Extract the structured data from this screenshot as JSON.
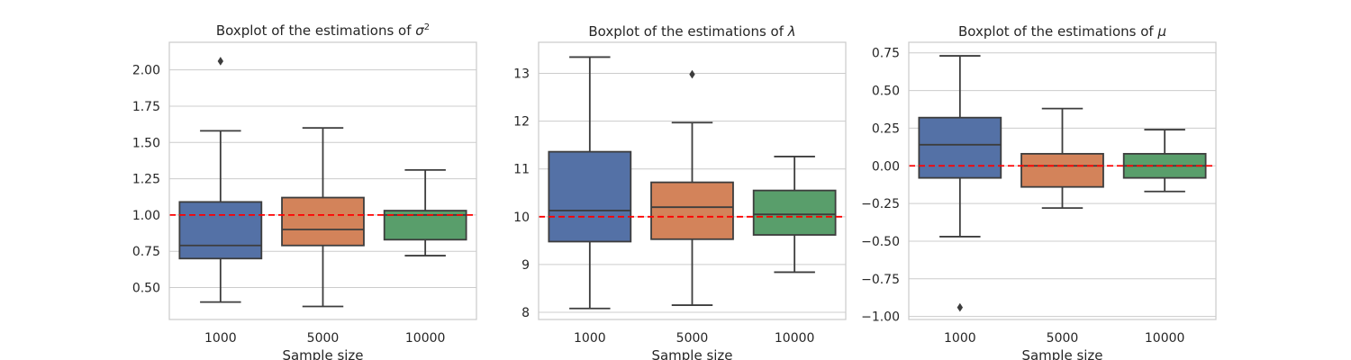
{
  "colors": {
    "grid": "#cccccc",
    "frame": "#cccccc",
    "box_edge": "#3d3d3d",
    "reference_line": "#ff0000",
    "series": [
      "#5471a6",
      "#d3835a",
      "#599e6b"
    ]
  },
  "chart_data": [
    {
      "type": "box",
      "title_main": "Boxplot of the estimations of ",
      "title_symbol": "σ",
      "title_sup": "2",
      "xlabel": "Sample size",
      "ylabel": "",
      "ylim": [
        0.28,
        2.19
      ],
      "yticks": [
        0.5,
        0.75,
        1.0,
        1.25,
        1.5,
        1.75,
        2.0
      ],
      "ytick_labels": [
        "0.50",
        "0.75",
        "1.00",
        "1.25",
        "1.50",
        "1.75",
        "2.00"
      ],
      "categories": [
        "1000",
        "5000",
        "10000"
      ],
      "grid": true,
      "reference_line": 1.0,
      "boxes": [
        {
          "whisker_low": 0.4,
          "q1": 0.7,
          "median": 0.79,
          "q3": 1.09,
          "whisker_high": 1.58,
          "outliers": [
            2.06
          ]
        },
        {
          "whisker_low": 0.37,
          "q1": 0.79,
          "median": 0.9,
          "q3": 1.12,
          "whisker_high": 1.6,
          "outliers": []
        },
        {
          "whisker_low": 0.72,
          "q1": 0.83,
          "median": 1.0,
          "q3": 1.03,
          "whisker_high": 1.31,
          "outliers": []
        }
      ]
    },
    {
      "type": "box",
      "title_main": "Boxplot of the estimations of ",
      "title_symbol": "λ",
      "title_sup": "",
      "xlabel": "Sample size",
      "ylabel": "",
      "ylim": [
        7.85,
        13.65
      ],
      "yticks": [
        8,
        9,
        10,
        11,
        12,
        13
      ],
      "ytick_labels": [
        "8",
        "9",
        "10",
        "11",
        "12",
        "13"
      ],
      "categories": [
        "1000",
        "5000",
        "10000"
      ],
      "grid": true,
      "reference_line": 10.0,
      "boxes": [
        {
          "whisker_low": 8.08,
          "q1": 9.48,
          "median": 10.13,
          "q3": 11.36,
          "whisker_high": 13.34,
          "outliers": []
        },
        {
          "whisker_low": 8.15,
          "q1": 9.53,
          "median": 10.2,
          "q3": 10.72,
          "whisker_high": 11.97,
          "outliers": [
            12.98
          ]
        },
        {
          "whisker_low": 8.84,
          "q1": 9.62,
          "median": 10.05,
          "q3": 10.55,
          "whisker_high": 11.26,
          "outliers": []
        }
      ]
    },
    {
      "type": "box",
      "title_main": "Boxplot of the estimations of ",
      "title_symbol": "μ",
      "title_sup": "",
      "xlabel": "Sample size",
      "ylabel": "",
      "ylim": [
        -1.02,
        0.82
      ],
      "yticks": [
        -1.0,
        -0.75,
        -0.5,
        -0.25,
        0.0,
        0.25,
        0.5,
        0.75
      ],
      "ytick_labels": [
        "−1.00",
        "−0.75",
        "−0.50",
        "−0.25",
        "0.00",
        "0.25",
        "0.50",
        "0.75"
      ],
      "categories": [
        "1000",
        "5000",
        "10000"
      ],
      "grid": true,
      "reference_line": 0.0,
      "boxes": [
        {
          "whisker_low": -0.47,
          "q1": -0.08,
          "median": 0.14,
          "q3": 0.32,
          "whisker_high": 0.73,
          "outliers": [
            -0.94
          ]
        },
        {
          "whisker_low": -0.28,
          "q1": -0.14,
          "median": 0.0,
          "q3": 0.08,
          "whisker_high": 0.38,
          "outliers": []
        },
        {
          "whisker_low": -0.17,
          "q1": -0.08,
          "median": 0.0,
          "q3": 0.08,
          "whisker_high": 0.24,
          "outliers": []
        }
      ]
    }
  ]
}
